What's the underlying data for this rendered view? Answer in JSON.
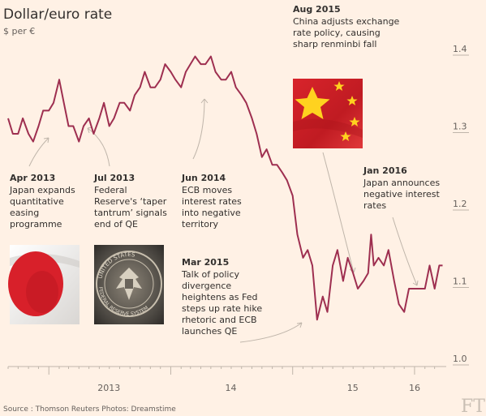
{
  "chart_data": {
    "type": "line",
    "title": "Dollar/euro rate",
    "ylabel": "$ per €",
    "ylim": [
      1.0,
      1.4
    ],
    "yticks": [
      "1.4",
      "1.3",
      "1.2",
      "1.1",
      "1.0"
    ],
    "xticks": [
      {
        "label": "2013",
        "x": "2013-06-30"
      },
      {
        "label": "14",
        "x": "2014-06-30"
      },
      {
        "label": "15",
        "x": "2015-06-30"
      },
      {
        "label": "16",
        "x": "2016-01-01"
      }
    ],
    "x_range": [
      "2012-09-01",
      "2016-03-31"
    ],
    "grid": false,
    "series": [
      {
        "color": "#9e2f50",
        "points": [
          [
            "2012-09-01",
            1.31
          ],
          [
            "2012-09-15",
            1.29
          ],
          [
            "2012-10-01",
            1.29
          ],
          [
            "2012-10-15",
            1.31
          ],
          [
            "2012-11-01",
            1.29
          ],
          [
            "2012-11-15",
            1.28
          ],
          [
            "2012-12-01",
            1.3
          ],
          [
            "2012-12-15",
            1.32
          ],
          [
            "2013-01-01",
            1.32
          ],
          [
            "2013-01-15",
            1.33
          ],
          [
            "2013-02-01",
            1.36
          ],
          [
            "2013-02-15",
            1.33
          ],
          [
            "2013-03-01",
            1.3
          ],
          [
            "2013-03-15",
            1.3
          ],
          [
            "2013-04-01",
            1.28
          ],
          [
            "2013-04-15",
            1.3
          ],
          [
            "2013-05-01",
            1.31
          ],
          [
            "2013-05-15",
            1.29
          ],
          [
            "2013-06-01",
            1.31
          ],
          [
            "2013-06-15",
            1.33
          ],
          [
            "2013-07-01",
            1.3
          ],
          [
            "2013-07-15",
            1.31
          ],
          [
            "2013-08-01",
            1.33
          ],
          [
            "2013-08-15",
            1.33
          ],
          [
            "2013-09-01",
            1.32
          ],
          [
            "2013-09-15",
            1.34
          ],
          [
            "2013-10-01",
            1.35
          ],
          [
            "2013-10-15",
            1.37
          ],
          [
            "2013-11-01",
            1.35
          ],
          [
            "2013-11-15",
            1.35
          ],
          [
            "2013-12-01",
            1.36
          ],
          [
            "2013-12-15",
            1.38
          ],
          [
            "2014-01-01",
            1.37
          ],
          [
            "2014-01-15",
            1.36
          ],
          [
            "2014-02-01",
            1.35
          ],
          [
            "2014-02-15",
            1.37
          ],
          [
            "2014-03-01",
            1.38
          ],
          [
            "2014-03-15",
            1.39
          ],
          [
            "2014-04-01",
            1.38
          ],
          [
            "2014-04-15",
            1.38
          ],
          [
            "2014-05-01",
            1.39
          ],
          [
            "2014-05-15",
            1.37
          ],
          [
            "2014-06-01",
            1.36
          ],
          [
            "2014-06-15",
            1.36
          ],
          [
            "2014-07-01",
            1.37
          ],
          [
            "2014-07-15",
            1.35
          ],
          [
            "2014-08-01",
            1.34
          ],
          [
            "2014-08-15",
            1.33
          ],
          [
            "2014-09-01",
            1.31
          ],
          [
            "2014-09-15",
            1.29
          ],
          [
            "2014-10-01",
            1.26
          ],
          [
            "2014-10-15",
            1.27
          ],
          [
            "2014-11-01",
            1.25
          ],
          [
            "2014-11-15",
            1.25
          ],
          [
            "2014-12-01",
            1.24
          ],
          [
            "2014-12-15",
            1.23
          ],
          [
            "2015-01-01",
            1.21
          ],
          [
            "2015-01-15",
            1.16
          ],
          [
            "2015-02-01",
            1.13
          ],
          [
            "2015-02-15",
            1.14
          ],
          [
            "2015-03-01",
            1.12
          ],
          [
            "2015-03-15",
            1.05
          ],
          [
            "2015-04-01",
            1.08
          ],
          [
            "2015-04-15",
            1.06
          ],
          [
            "2015-05-01",
            1.12
          ],
          [
            "2015-05-15",
            1.14
          ],
          [
            "2015-06-01",
            1.1
          ],
          [
            "2015-06-15",
            1.13
          ],
          [
            "2015-07-01",
            1.11
          ],
          [
            "2015-07-15",
            1.09
          ],
          [
            "2015-08-01",
            1.1
          ],
          [
            "2015-08-15",
            1.11
          ],
          [
            "2015-08-24",
            1.16
          ],
          [
            "2015-09-01",
            1.12
          ],
          [
            "2015-09-15",
            1.13
          ],
          [
            "2015-10-01",
            1.12
          ],
          [
            "2015-10-15",
            1.14
          ],
          [
            "2015-11-01",
            1.1
          ],
          [
            "2015-11-15",
            1.07
          ],
          [
            "2015-12-01",
            1.06
          ],
          [
            "2015-12-15",
            1.09
          ],
          [
            "2016-01-01",
            1.09
          ],
          [
            "2016-01-15",
            1.09
          ],
          [
            "2016-02-01",
            1.09
          ],
          [
            "2016-02-15",
            1.12
          ],
          [
            "2016-03-01",
            1.09
          ],
          [
            "2016-03-15",
            1.12
          ],
          [
            "2016-03-25",
            1.12
          ]
        ]
      }
    ],
    "annotations": [
      {
        "id": "apr2013",
        "date": "Apr 2013",
        "text": [
          "Japan expands",
          "quantitative",
          "easing",
          "programme"
        ],
        "image": "japan-flag"
      },
      {
        "id": "jul2013",
        "date": "Jul 2013",
        "text": [
          "Federal",
          "Reserve's ‘taper",
          "tantrum’ signals",
          "end of QE"
        ],
        "image": "federal-reserve-seal"
      },
      {
        "id": "jun2014",
        "date": "Jun 2014",
        "text": [
          "ECB moves",
          "interest rates",
          "into negative",
          "territory"
        ]
      },
      {
        "id": "mar2015",
        "date": "Mar 2015",
        "text": [
          "Talk of policy",
          "divergence",
          "heightens as Fed",
          "steps up rate hike",
          "rhetoric and ECB",
          "launches QE"
        ]
      },
      {
        "id": "aug2015",
        "date": "Aug 2015",
        "text": [
          "China adjusts exchange",
          "rate policy, causing",
          "sharp renminbi fall"
        ],
        "image": "china-flag"
      },
      {
        "id": "jan2016",
        "date": "Jan 2016",
        "text": [
          "Japan announces",
          "negative interest",
          "rates"
        ]
      }
    ],
    "seal_text": [
      "UNITED STATES",
      "FEDERAL RESERVE SYSTEM"
    ],
    "source": "Source : Thomson Reuters   Photos: Dreamstime",
    "logo": "FT",
    "colors": {
      "background": "#fff1e5",
      "line": "#9e2f50",
      "text": "#33302e",
      "muted": "#66605c",
      "leader": "#bfb5aa"
    }
  }
}
